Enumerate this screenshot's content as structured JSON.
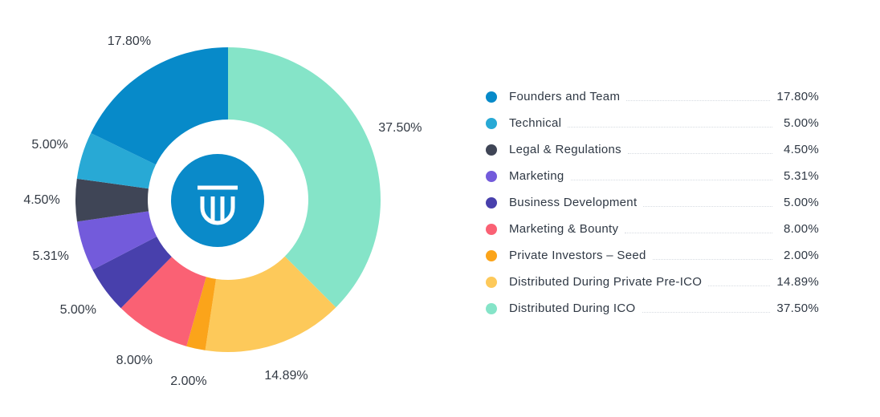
{
  "chart_data": {
    "type": "pie",
    "categories": [
      "Distributed During ICO",
      "Distributed During Private Pre-ICO",
      "Private Investors – Seed",
      "Marketing & Bounty",
      "Business Development",
      "Marketing",
      "Legal & Regulations",
      "Technical",
      "Founders and Team"
    ],
    "values": [
      37.5,
      14.89,
      2.0,
      8.0,
      5.0,
      5.31,
      4.5,
      5.0,
      17.8
    ],
    "value_labels": [
      "37.50%",
      "14.89%",
      "2.00%",
      "8.00%",
      "5.00%",
      "5.31%",
      "4.50%",
      "5.00%",
      "17.80%"
    ],
    "colors": [
      "#85e4c8",
      "#fdc95a",
      "#fba41a",
      "#fa6174",
      "#4840ac",
      "#735bdb",
      "#3f4556",
      "#28a9d5",
      "#078ac9"
    ],
    "donut": true
  },
  "legend": {
    "items": [
      {
        "label": "Founders and Team",
        "value": "17.80%",
        "color": "#078ac9"
      },
      {
        "label": "Technical",
        "value": "5.00%",
        "color": "#28a9d5"
      },
      {
        "label": "Legal & Regulations",
        "value": "4.50%",
        "color": "#3f4556"
      },
      {
        "label": "Marketing",
        "value": "5.31%",
        "color": "#735bdb"
      },
      {
        "label": "Business Development",
        "value": "5.00%",
        "color": "#4840ac"
      },
      {
        "label": "Marketing & Bounty",
        "value": "8.00%",
        "color": "#fa6174"
      },
      {
        "label": "Private Investors – Seed",
        "value": "2.00%",
        "color": "#fba41a"
      },
      {
        "label": "Distributed During Private Pre-ICO",
        "value": "14.89%",
        "color": "#fdc95a"
      },
      {
        "label": "Distributed During ICO",
        "value": "37.50%",
        "color": "#85e4c8"
      }
    ]
  },
  "logo": {
    "icon": "brand-logo-icon",
    "color": "#0a8ac9"
  }
}
